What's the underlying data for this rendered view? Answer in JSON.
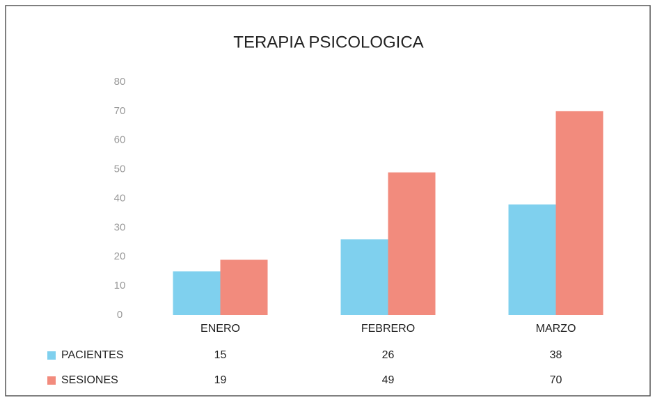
{
  "chart_data": {
    "type": "bar",
    "title": "TERAPIA PSICOLOGICA",
    "categories": [
      "ENERO",
      "FEBRERO",
      "MARZO"
    ],
    "series": [
      {
        "name": "PACIENTES",
        "color": "#7fd0ee",
        "values": [
          15,
          26,
          38
        ]
      },
      {
        "name": "SESIONES",
        "color": "#f28b7d",
        "values": [
          19,
          49,
          70
        ]
      }
    ],
    "ylim": [
      0,
      80
    ],
    "yticks": [
      0,
      10,
      20,
      30,
      40,
      50,
      60,
      70,
      80
    ],
    "grid": false
  }
}
